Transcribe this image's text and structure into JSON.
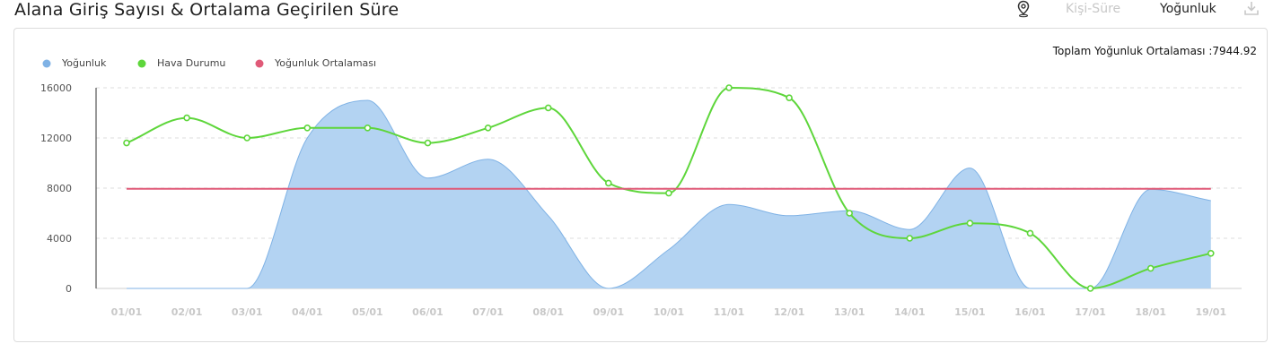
{
  "header": {
    "title": "Alana Giriş Sayısı & Ortalama Geçirilen Süre",
    "tab_person_time": "Kişi-Süre",
    "tab_density": "Yoğunluk",
    "icons": [
      "location-pin-icon",
      "download-icon"
    ]
  },
  "summary": {
    "total_label": "Toplam Yoğunluk Ortalaması :7944.92"
  },
  "chart_data": {
    "type": "area",
    "categories": [
      "01/01",
      "02/01",
      "03/01",
      "04/01",
      "05/01",
      "06/01",
      "07/01",
      "08/01",
      "09/01",
      "10/01",
      "11/01",
      "12/01",
      "13/01",
      "14/01",
      "15/01",
      "16/01",
      "17/01",
      "18/01",
      "19/01"
    ],
    "ylim": [
      0,
      16000
    ],
    "yticks": [
      "0",
      "4000",
      "8000",
      "12000",
      "16000"
    ],
    "grid": true,
    "legend_position": "top-left",
    "series": [
      {
        "name": "Yoğunluk",
        "type": "area",
        "color": "#7fb2e5",
        "values": [
          0,
          0,
          0,
          12000,
          15000,
          8800,
          10300,
          5800,
          0,
          3100,
          6700,
          5800,
          6200,
          4700,
          9600,
          0,
          0,
          7900,
          7000
        ]
      },
      {
        "name": "Hava Durumu",
        "type": "line",
        "color": "#5ed63b",
        "values": [
          11600,
          13600,
          12000,
          12800,
          12800,
          11600,
          12800,
          14400,
          8400,
          7600,
          16000,
          15200,
          6000,
          4000,
          5200,
          4400,
          0,
          1600,
          2800
        ]
      },
      {
        "name": "Yoğunluk Ortalaması",
        "type": "line",
        "color": "#e05a78",
        "values": [
          7944.92,
          7944.92,
          7944.92,
          7944.92,
          7944.92,
          7944.92,
          7944.92,
          7944.92,
          7944.92,
          7944.92,
          7944.92,
          7944.92,
          7944.92,
          7944.92,
          7944.92,
          7944.92,
          7944.92,
          7944.92,
          7944.92
        ]
      }
    ]
  }
}
